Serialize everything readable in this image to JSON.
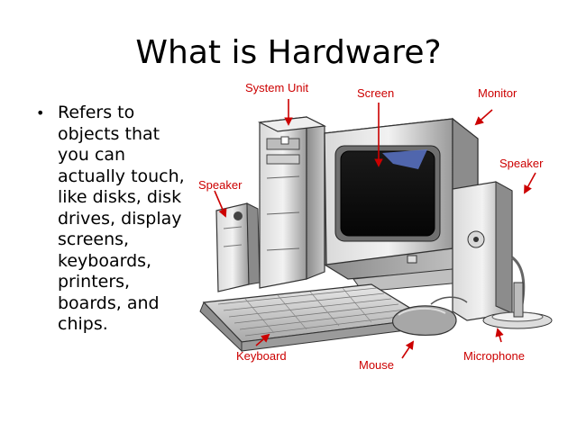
{
  "slide": {
    "title": "What is Hardware?",
    "bullets": [
      "Refers to objects that you can actually touch, like disks, disk drives, display screens, keyboards, printers, boards, and chips."
    ],
    "bullet_symbol": "•"
  },
  "figure": {
    "labels": {
      "system_unit": "System Unit",
      "screen": "Screen",
      "monitor": "Monitor",
      "speaker_left": "Speaker",
      "speaker_right": "Speaker",
      "keyboard": "Keyboard",
      "mouse": "Mouse",
      "microphone": "Microphone"
    },
    "label_color": "#cc0000"
  }
}
